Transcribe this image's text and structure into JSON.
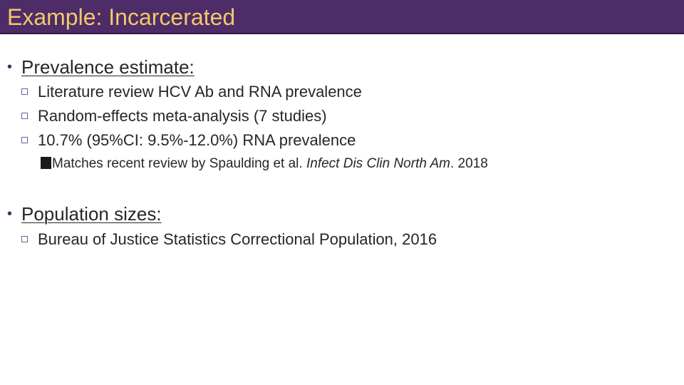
{
  "slide": {
    "title": "Example: Incarcerated",
    "sections": [
      {
        "heading": "Prevalence estimate:",
        "bullets": [
          "Literature review HCV Ab and RNA prevalence",
          "Random-effects meta-analysis (7 studies)",
          "10.7% (95%CI: 9.5%-12.0%) RNA prevalence"
        ],
        "sub_note": {
          "prefix": "Matches recent review by Spaulding et al. ",
          "journal": "Infect Dis Clin North Am",
          "suffix": ". 2018"
        }
      },
      {
        "heading": "Population sizes:",
        "bullets": [
          "Bureau of Justice Statistics Correctional Population, 2016"
        ]
      }
    ]
  },
  "colors": {
    "title_bar": "#4d2c68",
    "title_text": "#f4c86a",
    "body_text": "#262626"
  }
}
